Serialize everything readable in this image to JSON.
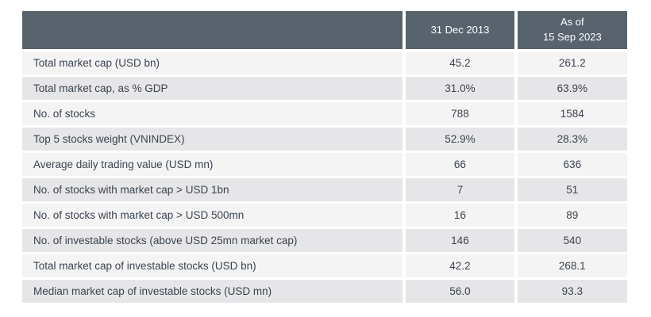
{
  "table": {
    "header": {
      "empty_cell": "",
      "col_2013": "31 Dec 2013",
      "col_2023_line1": "As of",
      "col_2023_line2": "15 Sep 2023"
    },
    "rows": [
      {
        "label": "Total market cap (USD bn)",
        "v2013": "45.2",
        "v2023": "261.2"
      },
      {
        "label": "Total market cap, as % GDP",
        "v2013": "31.0%",
        "v2023": "63.9%"
      },
      {
        "label": "No. of stocks",
        "v2013": "788",
        "v2023": "1584"
      },
      {
        "label": "Top 5 stocks weight (VNINDEX)",
        "v2013": "52.9%",
        "v2023": "28.3%"
      },
      {
        "label": "Average daily trading value (USD mn)",
        "v2013": "66",
        "v2023": "636"
      },
      {
        "label": "No. of stocks with market cap > USD 1bn",
        "v2013": "7",
        "v2023": "51"
      },
      {
        "label": "No. of stocks with market cap > USD 500mn",
        "v2013": "16",
        "v2023": "89"
      },
      {
        "label": "No. of investable stocks (above USD 25mn market cap)",
        "v2013": "146",
        "v2023": "540"
      },
      {
        "label": "Total market cap of investable stocks (USD bn)",
        "v2013": "42.2",
        "v2023": "268.1"
      },
      {
        "label": "Median market cap of investable stocks (USD mn)",
        "v2013": "56.0",
        "v2023": "93.3"
      }
    ],
    "colors": {
      "header_bg": "#59636d",
      "row_odd": "#e6e6e8",
      "row_even": "#f4f4f5",
      "body_text": "#3b444e",
      "header_text": "#ffffff"
    }
  }
}
